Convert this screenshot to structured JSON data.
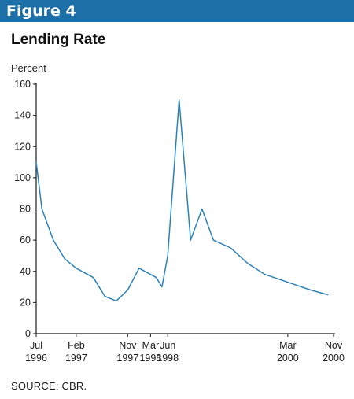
{
  "figure_label": "Figure 4",
  "source_note": "SOURCE: CBR.",
  "colors": {
    "banner": "#1d6fa8",
    "line": "#2b82b8",
    "axis": "#1a1a1a"
  },
  "chart_data": {
    "type": "line",
    "title": "Lending Rate",
    "xlabel": "",
    "ylabel": "Percent",
    "ylim": [
      0,
      160
    ],
    "yticks": [
      0,
      20,
      40,
      60,
      80,
      100,
      120,
      140,
      160
    ],
    "xlim": [
      "1996-07",
      "2000-11"
    ],
    "xticks": [
      {
        "date": "1996-07",
        "line1": "Jul",
        "line2": "1996"
      },
      {
        "date": "1997-02",
        "line1": "Feb",
        "line2": "1997"
      },
      {
        "date": "1997-11",
        "line1": "Nov",
        "line2": "1997"
      },
      {
        "date": "1998-03",
        "line1": "Mar",
        "line2": "1998"
      },
      {
        "date": "1998-06",
        "line1": "Jun",
        "line2": "1998"
      },
      {
        "date": "2000-03",
        "line1": "Mar",
        "line2": "2000"
      },
      {
        "date": "2000-11",
        "line1": "Nov",
        "line2": "2000"
      }
    ],
    "grid": false,
    "series": [
      {
        "points": [
          {
            "x": "1996-07",
            "y": 110
          },
          {
            "x": "1996-08",
            "y": 80
          },
          {
            "x": "1996-10",
            "y": 60
          },
          {
            "x": "1996-12",
            "y": 48
          },
          {
            "x": "1997-02",
            "y": 42
          },
          {
            "x": "1997-05",
            "y": 36
          },
          {
            "x": "1997-07",
            "y": 24
          },
          {
            "x": "1997-09",
            "y": 21
          },
          {
            "x": "1997-11",
            "y": 28
          },
          {
            "x": "1998-01",
            "y": 42
          },
          {
            "x": "1998-03",
            "y": 38
          },
          {
            "x": "1998-04",
            "y": 36
          },
          {
            "x": "1998-05",
            "y": 30
          },
          {
            "x": "1998-06",
            "y": 50
          },
          {
            "x": "1998-08",
            "y": 150
          },
          {
            "x": "1998-10",
            "y": 60
          },
          {
            "x": "1998-12",
            "y": 80
          },
          {
            "x": "1999-02",
            "y": 60
          },
          {
            "x": "1999-05",
            "y": 55
          },
          {
            "x": "1999-08",
            "y": 45
          },
          {
            "x": "1999-11",
            "y": 38
          },
          {
            "x": "2000-03",
            "y": 33
          },
          {
            "x": "2000-07",
            "y": 28
          },
          {
            "x": "2000-10",
            "y": 25
          }
        ]
      }
    ]
  }
}
